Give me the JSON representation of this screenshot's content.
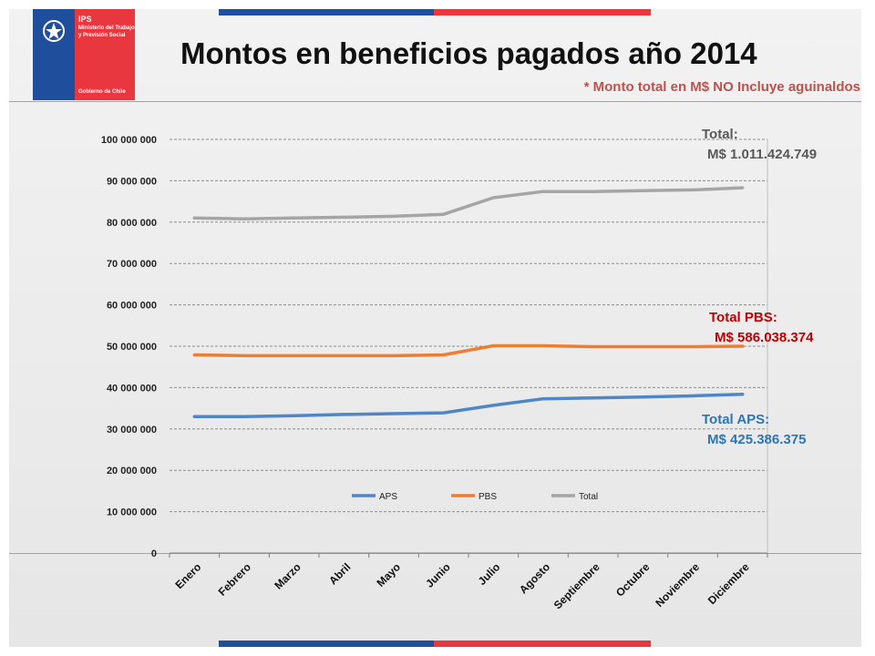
{
  "header": {
    "title": "Montos en beneficios pagados año 2014",
    "note": "* Monto total en M$ NO Incluye aguinaldos",
    "logo_line1": "IPS",
    "logo_line2": "Ministerio del Trabajo",
    "logo_line3": "y Previsión Social",
    "logo_line4": "Gobierno de Chile"
  },
  "annotations": {
    "total_label": "Total:",
    "total_value": "M$ 1.011.424.749",
    "pbs_label": "Total PBS:",
    "pbs_value": "M$ 586.038.374",
    "aps_label": "Total APS:",
    "aps_value": "M$ 425.386.375"
  },
  "colors": {
    "aps": "#4f86c6",
    "pbs": "#ed7d31",
    "total": "#a5a5a5",
    "annotation_total": "#595959",
    "annotation_pbs": "#c00000",
    "annotation_aps": "#2e75b6",
    "flag_blue": "#1f4e9c",
    "flag_red": "#e8373f"
  },
  "chart_data": {
    "type": "line",
    "categories": [
      "Enero",
      "Febrero",
      "Marzo",
      "Abril",
      "Mayo",
      "Junio",
      "Julio",
      "Agosto",
      "Septiembre",
      "Octubre",
      "Noviembre",
      "Diciembre"
    ],
    "series": [
      {
        "name": "APS",
        "values": [
          33000000,
          33000000,
          33200000,
          33500000,
          33700000,
          33900000,
          35700000,
          37300000,
          37500000,
          37700000,
          38000000,
          38400000
        ]
      },
      {
        "name": "PBS",
        "values": [
          47900000,
          47700000,
          47700000,
          47700000,
          47700000,
          47900000,
          50100000,
          50100000,
          49900000,
          49900000,
          49900000,
          50000000
        ]
      },
      {
        "name": "Total",
        "values": [
          81000000,
          80800000,
          81000000,
          81200000,
          81400000,
          81900000,
          85900000,
          87400000,
          87400000,
          87600000,
          87800000,
          88300000
        ]
      }
    ],
    "yticks": [
      "0",
      "10 000 000",
      "20 000 000",
      "30 000 000",
      "40 000 000",
      "50 000 000",
      "60 000 000",
      "70 000 000",
      "80 000 000",
      "90 000 000",
      "100 000 000"
    ],
    "ylim": [
      0,
      100000000
    ],
    "grid": true,
    "legend_position": "bottom-inside"
  }
}
